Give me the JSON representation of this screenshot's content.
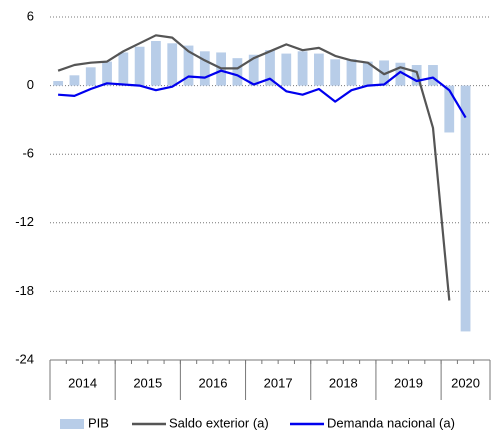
{
  "chart_data": {
    "type": "bar_line",
    "categories": [
      null,
      null,
      null,
      null,
      null,
      null,
      null,
      null,
      null,
      null,
      null,
      null,
      null,
      null,
      null,
      null,
      null,
      null,
      null,
      null,
      null,
      null,
      null,
      null,
      null,
      null,
      null
    ],
    "x_group_labels": [
      "2014",
      "2015",
      "2016",
      "2017",
      "2018",
      "2019",
      "2020"
    ],
    "series": [
      {
        "name": "PIB",
        "kind": "bar",
        "color": "#b8cde8",
        "values": [
          0.4,
          0.9,
          1.6,
          2.1,
          2.9,
          3.4,
          3.9,
          3.7,
          3.5,
          3.0,
          2.9,
          2.4,
          2.7,
          3.1,
          2.8,
          3.0,
          2.8,
          2.3,
          2.3,
          2.1,
          2.2,
          2.0,
          1.8,
          1.8,
          -4.1,
          -21.5,
          null
        ]
      },
      {
        "name": "Saldo exterior (a)",
        "kind": "line",
        "color": "#555555",
        "values": [
          1.3,
          1.8,
          2.0,
          2.1,
          3.0,
          3.7,
          4.4,
          4.2,
          3.0,
          2.2,
          1.5,
          1.5,
          2.4,
          3.0,
          3.6,
          3.1,
          3.3,
          2.6,
          2.2,
          2.0,
          1.0,
          1.6,
          1.2,
          -3.7,
          -18.8,
          null,
          null
        ]
      },
      {
        "name": "Demanda nacional (a)",
        "kind": "line",
        "color": "#0000ee",
        "values": [
          -0.8,
          -0.9,
          -0.3,
          0.2,
          0.1,
          0.0,
          -0.4,
          -0.1,
          0.8,
          0.7,
          1.3,
          0.9,
          0.1,
          0.6,
          -0.5,
          -0.8,
          -0.3,
          -1.4,
          -0.4,
          0.0,
          0.1,
          1.2,
          0.4,
          0.7,
          -0.4,
          -2.8,
          null
        ]
      }
    ],
    "ylim": [
      -24,
      6
    ],
    "yticks": [
      -24,
      -18,
      -12,
      -6,
      0,
      6
    ],
    "grid": true
  }
}
